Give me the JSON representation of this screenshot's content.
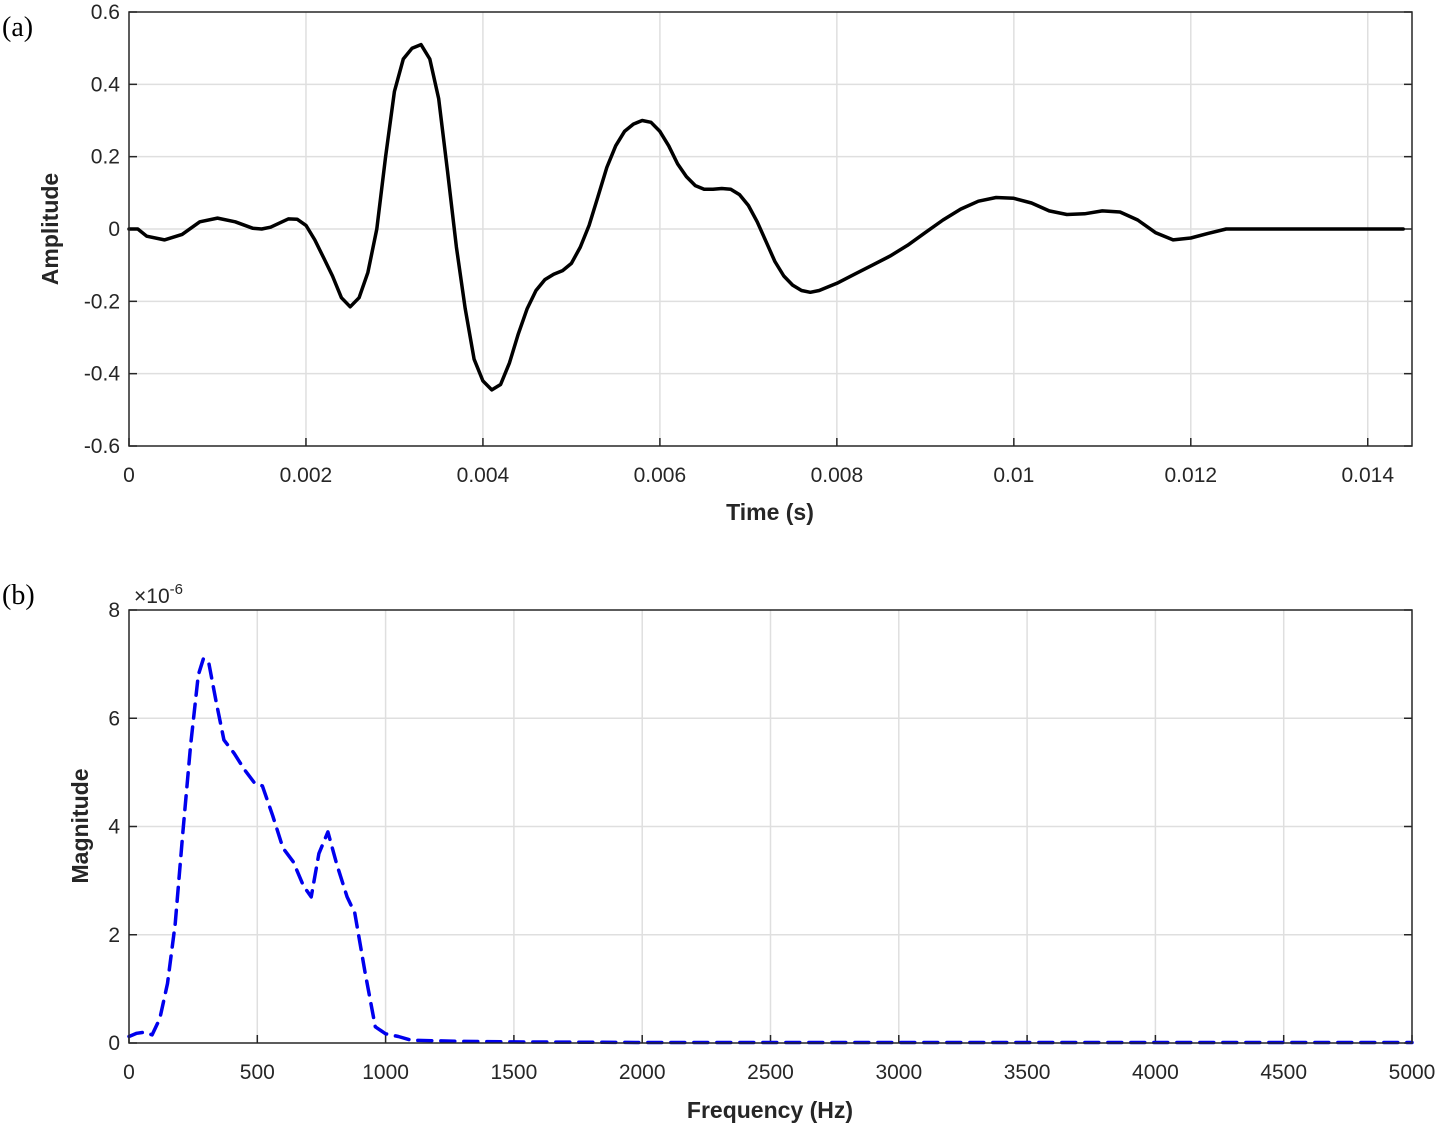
{
  "chart_data": [
    {
      "panel_label": "(a)",
      "type": "line",
      "xlabel": "Time (s)",
      "ylabel": "Amplitude",
      "xlim": [
        0,
        0.0145
      ],
      "ylim": [
        -0.6,
        0.6
      ],
      "xticks": [
        0,
        0.002,
        0.004,
        0.006,
        0.008,
        0.01,
        0.012,
        0.014
      ],
      "xtick_labels": [
        "0",
        "0.002",
        "0.004",
        "0.006",
        "0.008",
        "0.01",
        "0.012",
        "0.014"
      ],
      "yticks": [
        -0.6,
        -0.4,
        -0.2,
        0,
        0.2,
        0.4,
        0.6
      ],
      "ytick_labels": [
        "-0.6",
        "-0.4",
        "-0.2",
        "0",
        "0.2",
        "0.4",
        "0.6"
      ],
      "grid": true,
      "series": [
        {
          "color": "#000000",
          "style": "solid",
          "points": [
            [
              0,
              0
            ],
            [
              0.0001,
              0
            ],
            [
              0.0002,
              -0.02
            ],
            [
              0.0004,
              -0.03
            ],
            [
              0.0006,
              -0.015
            ],
            [
              0.0008,
              0.02
            ],
            [
              0.001,
              0.03
            ],
            [
              0.0012,
              0.02
            ],
            [
              0.0014,
              0.002
            ],
            [
              0.0015,
              0
            ],
            [
              0.0016,
              0.005
            ],
            [
              0.0018,
              0.028
            ],
            [
              0.0019,
              0.027
            ],
            [
              0.002,
              0.01
            ],
            [
              0.0021,
              -0.03
            ],
            [
              0.0022,
              -0.08
            ],
            [
              0.0023,
              -0.13
            ],
            [
              0.0024,
              -0.19
            ],
            [
              0.0025,
              -0.215
            ],
            [
              0.0026,
              -0.19
            ],
            [
              0.0027,
              -0.12
            ],
            [
              0.0028,
              0.0
            ],
            [
              0.0029,
              0.2
            ],
            [
              0.003,
              0.38
            ],
            [
              0.0031,
              0.47
            ],
            [
              0.0032,
              0.5
            ],
            [
              0.0033,
              0.51
            ],
            [
              0.0034,
              0.47
            ],
            [
              0.0035,
              0.36
            ],
            [
              0.0036,
              0.16
            ],
            [
              0.0037,
              -0.05
            ],
            [
              0.0038,
              -0.22
            ],
            [
              0.0039,
              -0.36
            ],
            [
              0.004,
              -0.42
            ],
            [
              0.0041,
              -0.445
            ],
            [
              0.0042,
              -0.43
            ],
            [
              0.0043,
              -0.37
            ],
            [
              0.0044,
              -0.29
            ],
            [
              0.0045,
              -0.22
            ],
            [
              0.0046,
              -0.17
            ],
            [
              0.0047,
              -0.14
            ],
            [
              0.0048,
              -0.125
            ],
            [
              0.0049,
              -0.115
            ],
            [
              0.005,
              -0.095
            ],
            [
              0.0051,
              -0.05
            ],
            [
              0.0052,
              0.01
            ],
            [
              0.0053,
              0.09
            ],
            [
              0.0054,
              0.17
            ],
            [
              0.0055,
              0.23
            ],
            [
              0.0056,
              0.27
            ],
            [
              0.0057,
              0.29
            ],
            [
              0.0058,
              0.3
            ],
            [
              0.0059,
              0.295
            ],
            [
              0.006,
              0.27
            ],
            [
              0.0061,
              0.23
            ],
            [
              0.0062,
              0.18
            ],
            [
              0.0063,
              0.145
            ],
            [
              0.0064,
              0.12
            ],
            [
              0.0065,
              0.11
            ],
            [
              0.0066,
              0.11
            ],
            [
              0.0067,
              0.112
            ],
            [
              0.0068,
              0.11
            ],
            [
              0.0069,
              0.095
            ],
            [
              0.007,
              0.065
            ],
            [
              0.0071,
              0.02
            ],
            [
              0.0072,
              -0.035
            ],
            [
              0.0073,
              -0.09
            ],
            [
              0.0074,
              -0.13
            ],
            [
              0.0075,
              -0.155
            ],
            [
              0.0076,
              -0.17
            ],
            [
              0.0077,
              -0.175
            ],
            [
              0.0078,
              -0.17
            ],
            [
              0.008,
              -0.15
            ],
            [
              0.0082,
              -0.125
            ],
            [
              0.0084,
              -0.1
            ],
            [
              0.0086,
              -0.075
            ],
            [
              0.0088,
              -0.045
            ],
            [
              0.009,
              -0.01
            ],
            [
              0.0092,
              0.025
            ],
            [
              0.0094,
              0.055
            ],
            [
              0.0096,
              0.077
            ],
            [
              0.0098,
              0.087
            ],
            [
              0.01,
              0.085
            ],
            [
              0.0102,
              0.072
            ],
            [
              0.0104,
              0.05
            ],
            [
              0.0106,
              0.04
            ],
            [
              0.0108,
              0.042
            ],
            [
              0.011,
              0.05
            ],
            [
              0.0112,
              0.047
            ],
            [
              0.0114,
              0.025
            ],
            [
              0.0116,
              -0.01
            ],
            [
              0.0118,
              -0.03
            ],
            [
              0.012,
              -0.025
            ],
            [
              0.0122,
              -0.012
            ],
            [
              0.0124,
              0
            ],
            [
              0.013,
              0
            ],
            [
              0.0135,
              0
            ],
            [
              0.0144,
              0
            ]
          ]
        }
      ]
    },
    {
      "panel_label": "(b)",
      "type": "line",
      "xlabel": "Frequency (Hz)",
      "ylabel": "Magnitude",
      "multiplier_base": "×10",
      "multiplier_exp": "-6",
      "xlim": [
        0,
        5000
      ],
      "ylim": [
        0,
        8
      ],
      "xticks": [
        0,
        500,
        1000,
        1500,
        2000,
        2500,
        3000,
        3500,
        4000,
        4500,
        5000
      ],
      "xtick_labels": [
        "0",
        "500",
        "1000",
        "1500",
        "2000",
        "2500",
        "3000",
        "3500",
        "4000",
        "4500",
        "5000"
      ],
      "yticks": [
        0,
        2,
        4,
        6,
        8
      ],
      "ytick_labels": [
        "0",
        "2",
        "4",
        "6",
        "8"
      ],
      "grid": true,
      "series": [
        {
          "color": "#0000ee",
          "style": "dashed",
          "points": [
            [
              0,
              0.12
            ],
            [
              30,
              0.18
            ],
            [
              60,
              0.2
            ],
            [
              90,
              0.15
            ],
            [
              120,
              0.45
            ],
            [
              150,
              1.1
            ],
            [
              180,
              2.2
            ],
            [
              210,
              3.9
            ],
            [
              240,
              5.5
            ],
            [
              270,
              6.8
            ],
            [
              290,
              7.1
            ],
            [
              310,
              7.05
            ],
            [
              340,
              6.3
            ],
            [
              370,
              5.6
            ],
            [
              410,
              5.35
            ],
            [
              450,
              5.05
            ],
            [
              490,
              4.8
            ],
            [
              520,
              4.75
            ],
            [
              560,
              4.2
            ],
            [
              600,
              3.6
            ],
            [
              640,
              3.35
            ],
            [
              680,
              2.9
            ],
            [
              710,
              2.7
            ],
            [
              740,
              3.5
            ],
            [
              775,
              3.9
            ],
            [
              810,
              3.3
            ],
            [
              850,
              2.7
            ],
            [
              880,
              2.4
            ],
            [
              920,
              1.3
            ],
            [
              960,
              0.3
            ],
            [
              1000,
              0.17
            ],
            [
              1050,
              0.12
            ],
            [
              1100,
              0.05
            ],
            [
              1200,
              0.04
            ],
            [
              1300,
              0.03
            ],
            [
              1500,
              0.02
            ],
            [
              2000,
              0.01
            ],
            [
              3000,
              0.01
            ],
            [
              4000,
              0.01
            ],
            [
              5000,
              0.01
            ]
          ]
        }
      ]
    }
  ]
}
